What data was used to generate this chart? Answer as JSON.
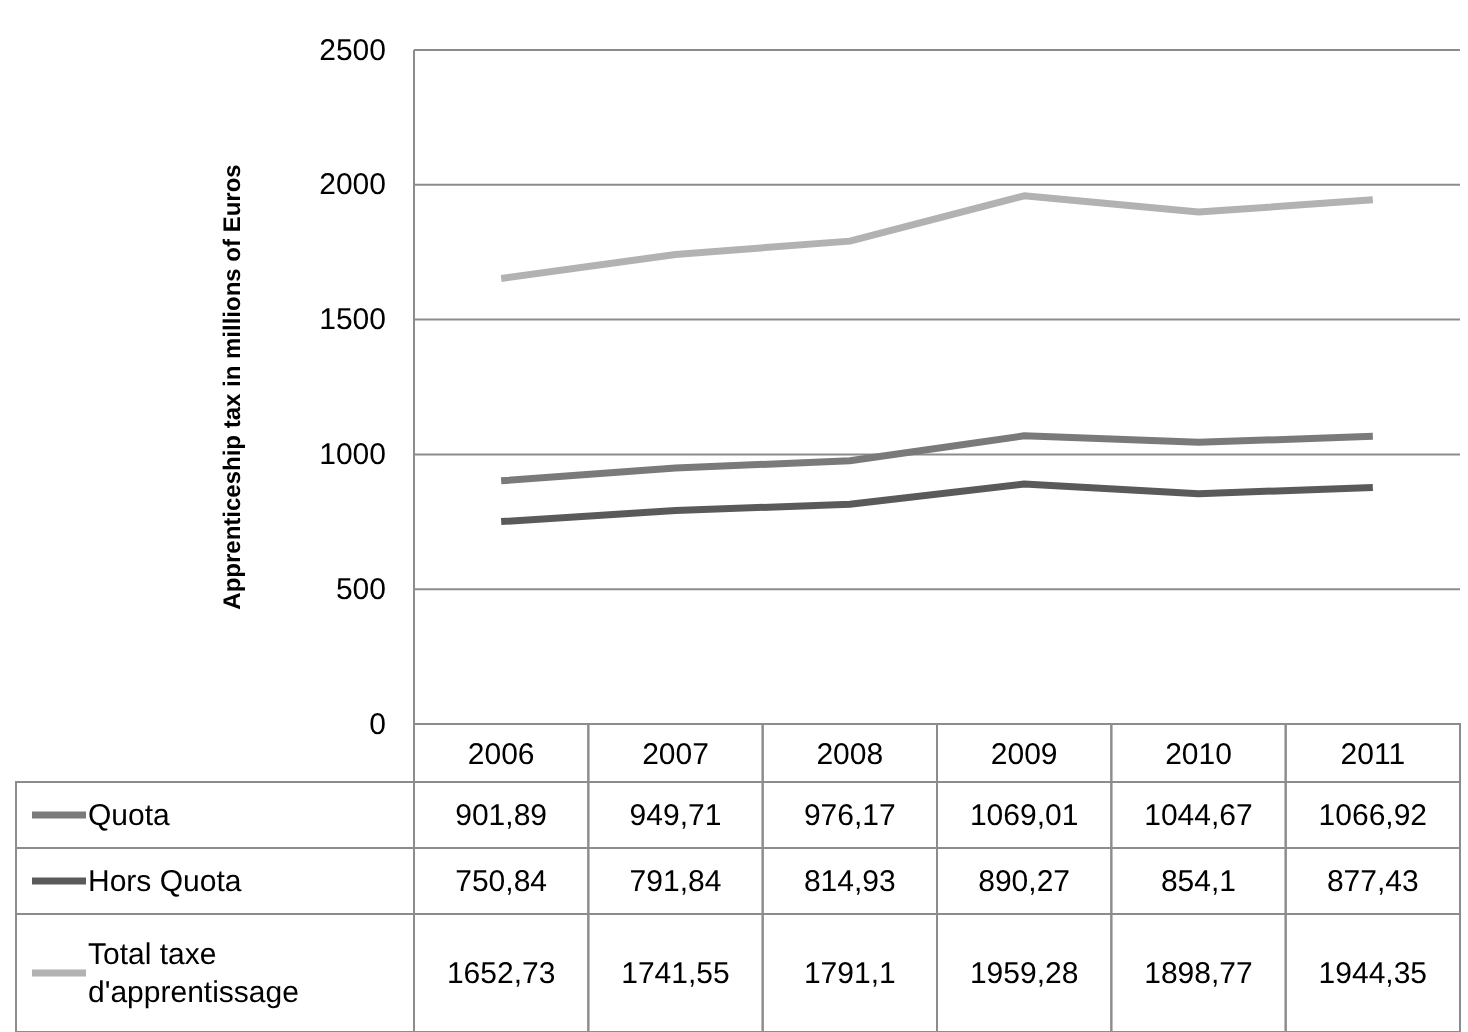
{
  "chart_data": {
    "type": "line",
    "ylabel": "Apprenticeship tax in millions of Euros",
    "categories": [
      "2006",
      "2007",
      "2008",
      "2009",
      "2010",
      "2011"
    ],
    "series": [
      {
        "name": "Quota",
        "color": "#7a7a7a",
        "values": [
          901.89,
          949.71,
          976.17,
          1069.01,
          1044.67,
          1066.92
        ],
        "value_labels": [
          "901,89",
          "949,71",
          "976,17",
          "1069,01",
          "1044,67",
          "1066,92"
        ]
      },
      {
        "name": "Hors Quota",
        "color": "#5a5a5a",
        "values": [
          750.84,
          791.84,
          814.93,
          890.27,
          854.1,
          877.43
        ],
        "value_labels": [
          "750,84",
          "791,84",
          "814,93",
          "890,27",
          "854,1",
          "877,43"
        ]
      },
      {
        "name": "Total taxe d'apprentissage",
        "color": "#b2b2b2",
        "values": [
          1652.73,
          1741.55,
          1791.1,
          1959.28,
          1898.77,
          1944.35
        ],
        "value_labels": [
          "1652,73",
          "1741,55",
          "1791,1",
          "1959,28",
          "1898,77",
          "1944,35"
        ]
      }
    ],
    "ylim": [
      0,
      2500
    ],
    "yticks": [
      0,
      500,
      1000,
      1500,
      2000,
      2500
    ],
    "grid": "y",
    "legend": "bottom",
    "marker": "none",
    "line_style": "solid"
  }
}
